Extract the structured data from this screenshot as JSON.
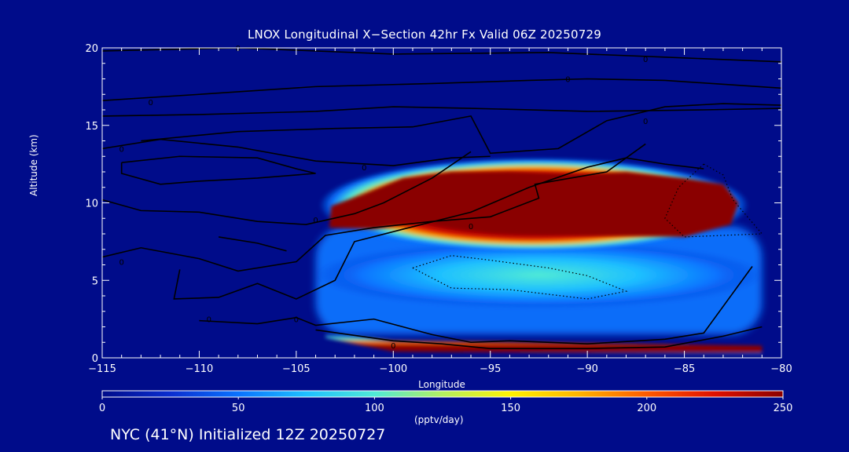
{
  "chart_data": {
    "type": "heatmap",
    "title": "LNOX Longitudinal X−Section 42hr  Fx Valid 06Z 20250729",
    "xlabel": "Longitude",
    "ylabel": "Altitude (km)",
    "xlim": [
      -115,
      -80
    ],
    "ylim": [
      0,
      20
    ],
    "xticks": [
      -115,
      -110,
      -105,
      -100,
      -95,
      -90,
      -85,
      -80
    ],
    "xtick_labels": [
      "−115",
      "−110",
      "−105",
      "−100",
      "−95",
      "−90",
      "−85",
      "−80"
    ],
    "yticks": [
      0,
      5,
      10,
      15,
      20
    ],
    "ytick_labels": [
      "0",
      "5",
      "10",
      "15",
      "20"
    ],
    "colorbar": {
      "min": 0,
      "max": 250,
      "ticks": [
        0,
        50,
        100,
        150,
        200,
        250
      ],
      "tick_labels": [
        "0",
        "50",
        "100",
        "150",
        "200",
        "250"
      ],
      "units": "(pptv/day)",
      "colors": [
        "#000c8a",
        "#0b2ecf",
        "#0a73ff",
        "#1ec0ff",
        "#50ead6",
        "#b4f060",
        "#fff300",
        "#ffb400",
        "#ff5a00",
        "#e01000",
        "#8a0000"
      ]
    },
    "field_regions": [
      {
        "name": "upper-maximum",
        "lon": [
          -103.5,
          -82
        ],
        "alt": [
          7.2,
          12.5
        ],
        "peak": 250
      },
      {
        "name": "mid-level-plume",
        "lon": [
          -104,
          -81
        ],
        "alt": [
          3.5,
          7.2
        ],
        "peak": 90
      },
      {
        "name": "near-surface-layer",
        "lon": [
          -103.5,
          -81
        ],
        "alt": [
          0.2,
          1.8
        ],
        "peak": 250
      }
    ],
    "contour_labels": [
      {
        "text": "0",
        "lon": -108,
        "alt": 20
      },
      {
        "text": "0",
        "lon": -87,
        "alt": 19.3
      },
      {
        "text": "0",
        "lon": -91,
        "alt": 18
      },
      {
        "text": "0",
        "lon": -112.5,
        "alt": 16.5
      },
      {
        "text": "0",
        "lon": -87,
        "alt": 15.3
      },
      {
        "text": "0",
        "lon": -114,
        "alt": 13.5
      },
      {
        "text": "0",
        "lon": -101.5,
        "alt": 12.3
      },
      {
        "text": "0",
        "lon": -104,
        "alt": 8.9
      },
      {
        "text": "0",
        "lon": -96,
        "alt": 8.5
      },
      {
        "text": "0",
        "lon": -114,
        "alt": 6.2
      },
      {
        "text": "0",
        "lon": -109.5,
        "alt": 2.5
      },
      {
        "text": "0",
        "lon": -105,
        "alt": 2.5
      },
      {
        "text": "0",
        "lon": -100,
        "alt": 0.8
      }
    ]
  },
  "footer": "NYC (41°N) Initialized 12Z 20250727"
}
